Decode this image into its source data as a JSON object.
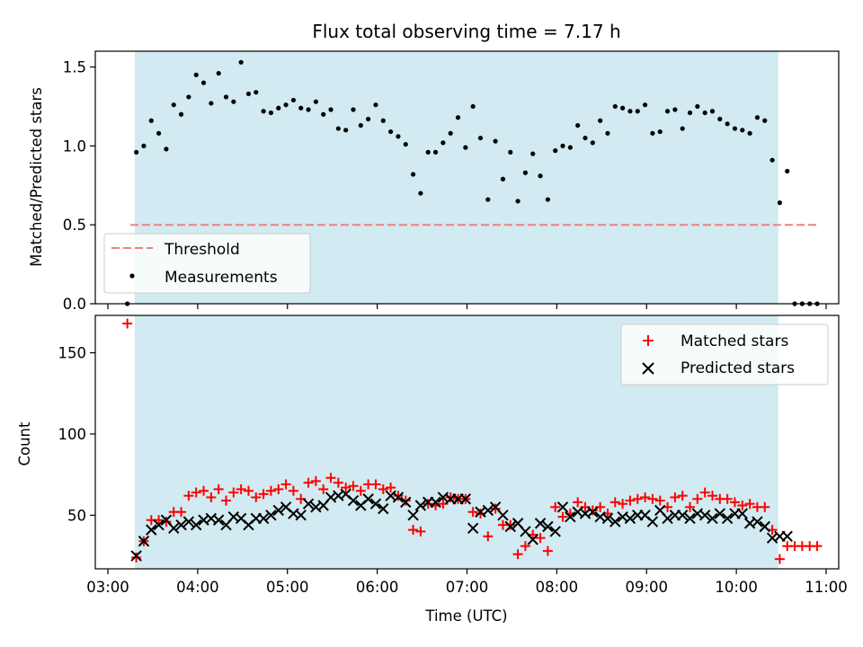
{
  "title": "Flux total observing time = 7.17 h",
  "colors": {
    "shade": "#add8e6",
    "threshold": "#f08080",
    "matched": "#ff0000",
    "predicted": "#000000",
    "measurement": "#000000"
  },
  "chart_data": [
    {
      "type": "scatter",
      "ylabel": "Matched/Predicted stars",
      "xlim": [
        "03:00",
        "11:00"
      ],
      "ylim": [
        0,
        1.6
      ],
      "yticks": [
        0.0,
        0.5,
        1.0,
        1.5
      ],
      "ytick_labels": [
        "0.0",
        "0.5",
        "1.0",
        "1.5"
      ],
      "shaded_span": [
        "03:18",
        "10:28"
      ],
      "legend": {
        "position": "lower-left",
        "entries": [
          "Threshold",
          "Measurements"
        ]
      },
      "threshold": {
        "name": "Threshold",
        "y": 0.5,
        "x_start": "03:15",
        "x_end": "10:55"
      },
      "series": [
        {
          "name": "Measurements",
          "x": [
            "03:13",
            "03:19",
            "03:24",
            "03:29",
            "03:34",
            "03:39",
            "03:44",
            "03:49",
            "03:54",
            "03:59",
            "04:04",
            "04:09",
            "04:14",
            "04:19",
            "04:24",
            "04:29",
            "04:34",
            "04:39",
            "04:44",
            "04:49",
            "04:54",
            "04:59",
            "05:04",
            "05:09",
            "05:14",
            "05:19",
            "05:24",
            "05:29",
            "05:34",
            "05:39",
            "05:44",
            "05:49",
            "05:54",
            "05:59",
            "06:04",
            "06:09",
            "06:14",
            "06:19",
            "06:24",
            "06:29",
            "06:34",
            "06:39",
            "06:44",
            "06:49",
            "06:54",
            "06:59",
            "07:04",
            "07:09",
            "07:14",
            "07:19",
            "07:24",
            "07:29",
            "07:34",
            "07:39",
            "07:44",
            "07:49",
            "07:54",
            "07:59",
            "08:04",
            "08:09",
            "08:14",
            "08:19",
            "08:24",
            "08:29",
            "08:34",
            "08:39",
            "08:44",
            "08:49",
            "08:54",
            "08:59",
            "09:04",
            "09:09",
            "09:14",
            "09:19",
            "09:24",
            "09:29",
            "09:34",
            "09:39",
            "09:44",
            "09:49",
            "09:54",
            "09:59",
            "10:04",
            "10:09",
            "10:14",
            "10:19",
            "10:24",
            "10:29",
            "10:34",
            "10:39",
            "10:44",
            "10:49",
            "10:54"
          ],
          "y": [
            0.0,
            0.96,
            1.0,
            1.16,
            1.08,
            0.98,
            1.26,
            1.2,
            1.31,
            1.45,
            1.4,
            1.27,
            1.46,
            1.31,
            1.28,
            1.53,
            1.33,
            1.34,
            1.22,
            1.21,
            1.24,
            1.26,
            1.29,
            1.24,
            1.23,
            1.28,
            1.2,
            1.23,
            1.11,
            1.1,
            1.23,
            1.13,
            1.17,
            1.26,
            1.16,
            1.09,
            1.06,
            1.01,
            0.82,
            0.7,
            0.96,
            0.96,
            1.02,
            1.08,
            1.18,
            0.99,
            1.25,
            1.05,
            0.66,
            1.03,
            0.79,
            0.96,
            0.65,
            0.83,
            0.95,
            0.81,
            0.66,
            0.97,
            1.0,
            0.99,
            1.13,
            1.05,
            1.02,
            1.16,
            1.08,
            1.25,
            1.24,
            1.22,
            1.22,
            1.26,
            1.08,
            1.09,
            1.22,
            1.23,
            1.11,
            1.21,
            1.25,
            1.21,
            1.22,
            1.17,
            1.14,
            1.11,
            1.1,
            1.08,
            1.18,
            1.16,
            0.91,
            0.64,
            0.84,
            0.0,
            0.0,
            0.0,
            0.0
          ]
        }
      ]
    },
    {
      "type": "scatter",
      "xlabel": "Time (UTC)",
      "ylabel": "Count",
      "xlim": [
        "03:00",
        "11:00"
      ],
      "ylim": [
        17,
        173
      ],
      "yticks": [
        50,
        100,
        150
      ],
      "ytick_labels": [
        "50",
        "100",
        "150"
      ],
      "xticks": [
        "03:00",
        "04:00",
        "05:00",
        "06:00",
        "07:00",
        "08:00",
        "09:00",
        "10:00",
        "11:00"
      ],
      "shaded_span": [
        "03:18",
        "10:28"
      ],
      "legend": {
        "position": "upper-right",
        "entries": [
          "Matched stars",
          "Predicted stars"
        ]
      },
      "series": [
        {
          "name": "Matched stars",
          "x": [
            "03:13",
            "03:19",
            "03:24",
            "03:29",
            "03:34",
            "03:39",
            "03:44",
            "03:49",
            "03:54",
            "03:59",
            "04:04",
            "04:09",
            "04:14",
            "04:19",
            "04:24",
            "04:29",
            "04:34",
            "04:39",
            "04:44",
            "04:49",
            "04:54",
            "04:59",
            "05:04",
            "05:09",
            "05:14",
            "05:19",
            "05:24",
            "05:29",
            "05:34",
            "05:39",
            "05:44",
            "05:49",
            "05:54",
            "05:59",
            "06:04",
            "06:09",
            "06:14",
            "06:19",
            "06:24",
            "06:29",
            "06:34",
            "06:39",
            "06:44",
            "06:49",
            "06:54",
            "06:59",
            "07:04",
            "07:09",
            "07:14",
            "07:19",
            "07:24",
            "07:29",
            "07:34",
            "07:39",
            "07:44",
            "07:49",
            "07:54",
            "07:59",
            "08:04",
            "08:09",
            "08:14",
            "08:19",
            "08:24",
            "08:29",
            "08:34",
            "08:39",
            "08:44",
            "08:49",
            "08:54",
            "08:59",
            "09:04",
            "09:09",
            "09:14",
            "09:19",
            "09:24",
            "09:29",
            "09:34",
            "09:39",
            "09:44",
            "09:49",
            "09:54",
            "09:59",
            "10:04",
            "10:09",
            "10:14",
            "10:19",
            "10:24",
            "10:29",
            "10:34",
            "10:39",
            "10:44",
            "10:49",
            "10:54"
          ],
          "y": [
            168,
            24,
            34,
            47,
            47,
            46,
            52,
            52,
            62,
            64,
            65,
            61,
            66,
            59,
            64,
            66,
            65,
            61,
            63,
            65,
            66,
            69,
            65,
            60,
            70,
            71,
            66,
            73,
            70,
            67,
            68,
            65,
            69,
            69,
            66,
            67,
            62,
            59,
            41,
            40,
            57,
            56,
            57,
            61,
            60,
            60,
            52,
            51,
            37,
            54,
            44,
            44,
            26,
            31,
            38,
            36,
            28,
            55,
            49,
            51,
            58,
            55,
            53,
            55,
            51,
            58,
            57,
            59,
            60,
            61,
            60,
            59,
            55,
            61,
            62,
            55,
            60,
            64,
            62,
            60,
            60,
            58,
            56,
            57,
            55,
            55,
            41,
            23,
            31,
            31,
            31,
            31,
            31
          ]
        },
        {
          "name": "Predicted stars",
          "x": [
            "03:19",
            "03:24",
            "03:29",
            "03:34",
            "03:39",
            "03:44",
            "03:49",
            "03:54",
            "03:59",
            "04:04",
            "04:09",
            "04:14",
            "04:19",
            "04:24",
            "04:29",
            "04:34",
            "04:39",
            "04:44",
            "04:49",
            "04:54",
            "04:59",
            "05:04",
            "05:09",
            "05:14",
            "05:19",
            "05:24",
            "05:29",
            "05:34",
            "05:39",
            "05:44",
            "05:49",
            "05:54",
            "05:59",
            "06:04",
            "06:09",
            "06:14",
            "06:19",
            "06:24",
            "06:29",
            "06:34",
            "06:39",
            "06:44",
            "06:49",
            "06:54",
            "06:59",
            "07:04",
            "07:09",
            "07:14",
            "07:19",
            "07:24",
            "07:29",
            "07:34",
            "07:39",
            "07:44",
            "07:49",
            "07:54",
            "07:59",
            "08:04",
            "08:09",
            "08:14",
            "08:19",
            "08:24",
            "08:29",
            "08:34",
            "08:39",
            "08:44",
            "08:49",
            "08:54",
            "08:59",
            "09:04",
            "09:09",
            "09:14",
            "09:19",
            "09:24",
            "09:29",
            "09:34",
            "09:39",
            "09:44",
            "09:49",
            "09:54",
            "09:59",
            "10:04",
            "10:09",
            "10:14",
            "10:19",
            "10:24",
            "10:29",
            "10:34"
          ],
          "y": [
            25,
            34,
            41,
            44,
            47,
            42,
            44,
            46,
            44,
            47,
            48,
            47,
            44,
            49,
            48,
            44,
            48,
            48,
            50,
            53,
            55,
            51,
            50,
            57,
            55,
            56,
            61,
            62,
            63,
            59,
            56,
            60,
            57,
            54,
            62,
            61,
            58,
            50,
            56,
            58,
            58,
            61,
            60,
            60,
            60,
            42,
            52,
            53,
            55,
            50,
            43,
            45,
            40,
            35,
            45,
            43,
            40,
            55,
            49,
            52,
            51,
            52,
            49,
            48,
            46,
            49,
            48,
            50,
            50,
            46,
            53,
            48,
            50,
            50,
            48,
            51,
            50,
            48,
            51,
            48,
            51,
            51,
            45,
            46,
            43,
            36,
            37,
            37
          ]
        }
      ]
    }
  ]
}
